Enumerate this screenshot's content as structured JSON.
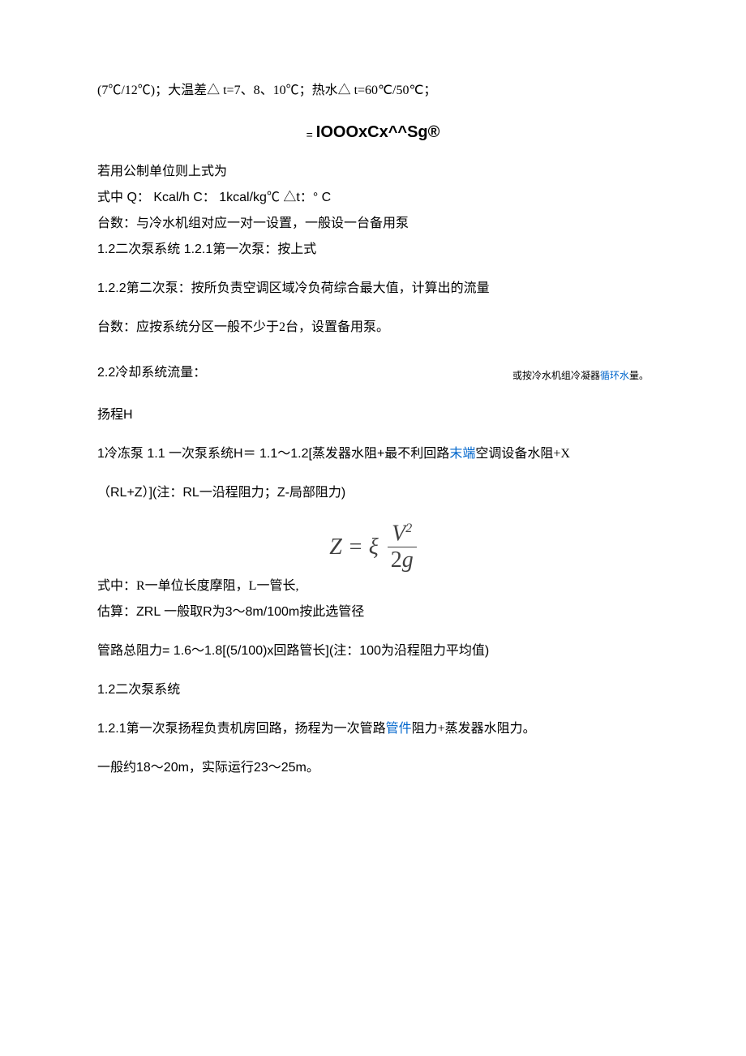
{
  "line1": "(7℃/12℃)；大温差△ t=7、8、10℃；热水△  t=60℃/50℃；",
  "formula_top": {
    "eq": "=",
    "body": "IOOOxCx^^Sg®"
  },
  "line2": "若用公制单位则上式为",
  "line3": "式中  Q：  Kcal/h C：  1kcal/kg℃ △t：° C",
  "line4": "台数：与冷水机组对应一对一设置，一般设一台备用泵",
  "line5": "1.2二次泵系统  1.2.1第一次泵：按上式",
  "line6": "1.2.2第二次泵：按所负责空调区域冷负荷综合最大值，计算出的流量",
  "line7": "台数：应按系统分区一般不少于2台，设置备用泵。",
  "line8_left": "2.2冷却系统流量：",
  "line8_right_a": "或按冷水机组冷凝器",
  "line8_right_link": "循环水",
  "line8_right_b": "量。",
  "line9": "扬程H",
  "line10_a": "1冷冻泵  1.1 一次泵系统H＝ 1.1〜1.2[蒸发器水阻+最不利回路",
  "line10_link": "末端",
  "line10_b": "空调设备水阻+X",
  "line11": "（RL+Z）](注：RL一沿程阻力；Z-局部阻力)",
  "formula_z": {
    "lhs": "Z = ξ",
    "num_v": "V",
    "num_exp": "2",
    "den_2": "2",
    "den_g": "g"
  },
  "line12": "式中：R一单位长度摩阻，L一管长,",
  "line13": "估算：ZRL 一般取R为3〜8m/100m按此选管径",
  "line14": "管路总阻力= 1.6〜1.8[(5/100)x回路管长](注：100为沿程阻力平均值)",
  "line15": "1.2二次泵系统",
  "line16_a": "1.2.1第一次泵扬程负责机房回路，扬程为一次管路",
  "line16_link": "管件",
  "line16_b": "阻力+蒸发器水阻力。",
  "line17": "一般约18〜20m，实际运行23〜25m。",
  "colors": {
    "text": "#000000",
    "link": "#0066cc",
    "formula": "#404040",
    "bg": "#ffffff"
  }
}
